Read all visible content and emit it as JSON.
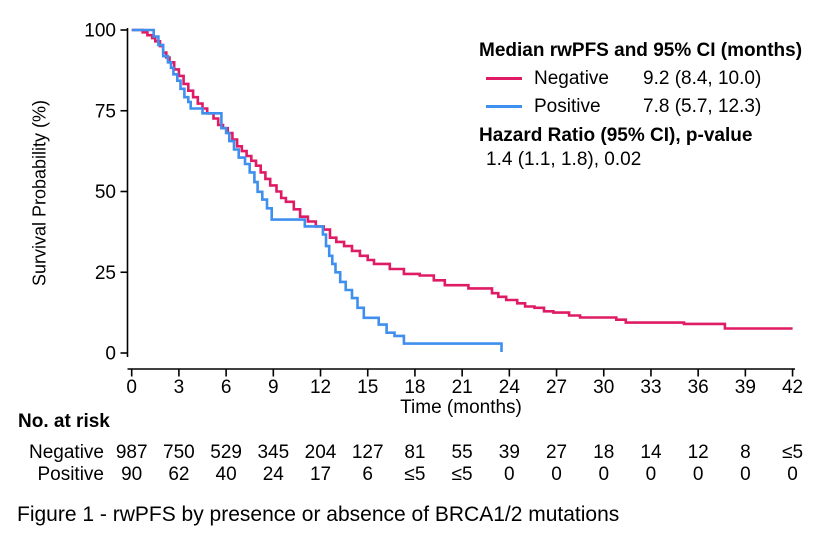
{
  "figure": {
    "caption": "Figure 1 - rwPFS by presence or absence of BRCA1/2 mutations"
  },
  "legend": {
    "title": "Median rwPFS and 95% CI (months)",
    "rows": [
      {
        "label": "Negative",
        "value": "9.2 (8.4, 10.0)",
        "color": "#DE1B64"
      },
      {
        "label": "Positive",
        "value": "7.8 (5.7, 12.3)",
        "color": "#3F8FEF"
      }
    ],
    "hr_title": "Hazard Ratio (95% CI), p-value",
    "hr_value": "1.4 (1.1, 1.8), 0.02"
  },
  "risk_table": {
    "title": "No. at risk",
    "rows": [
      {
        "label": "Negative",
        "values": [
          "987",
          "750",
          "529",
          "345",
          "204",
          "127",
          "81",
          "55",
          "39",
          "27",
          "18",
          "14",
          "12",
          "8",
          "≤5"
        ]
      },
      {
        "label": "Positive",
        "values": [
          "90",
          "62",
          "40",
          "24",
          "17",
          "6",
          "≤5",
          "≤5",
          "0",
          "0",
          "0",
          "0",
          "0",
          "0",
          "0"
        ]
      }
    ]
  },
  "chart_data": {
    "type": "line",
    "subtype": "kaplan-meier-step",
    "title": "",
    "xlabel": "Time (months)",
    "ylabel": "Survival Probability (%)",
    "xlim": [
      0,
      42
    ],
    "ylim": [
      0,
      100
    ],
    "xticks": [
      0,
      3,
      6,
      9,
      12,
      15,
      18,
      21,
      24,
      27,
      30,
      33,
      36,
      39,
      42
    ],
    "yticks": [
      0,
      25,
      50,
      75,
      100
    ],
    "grid": false,
    "legend_position": "top-right",
    "axis_color": "#000000",
    "series": [
      {
        "name": "Negative",
        "color": "#DE1B64",
        "median_months": 9.2,
        "points": [
          [
            0,
            100
          ],
          [
            0.7,
            99.3
          ],
          [
            1.0,
            98.4
          ],
          [
            1.3,
            97.5
          ],
          [
            1.5,
            96.5
          ],
          [
            1.8,
            95.0
          ],
          [
            2.0,
            93.0
          ],
          [
            2.2,
            91.5
          ],
          [
            2.4,
            90.0
          ],
          [
            2.7,
            87.8
          ],
          [
            3.0,
            85.8
          ],
          [
            3.3,
            83.3
          ],
          [
            3.6,
            81.2
          ],
          [
            3.9,
            79.2
          ],
          [
            4.2,
            77.2
          ],
          [
            4.5,
            75.7
          ],
          [
            4.8,
            74.2
          ],
          [
            5.2,
            72.6
          ],
          [
            5.5,
            70.6
          ],
          [
            5.8,
            69.6
          ],
          [
            6.1,
            68.1
          ],
          [
            6.4,
            66.1
          ],
          [
            6.7,
            64.0
          ],
          [
            7.0,
            62.5
          ],
          [
            7.3,
            61.0
          ],
          [
            7.6,
            59.5
          ],
          [
            7.9,
            58.0
          ],
          [
            8.2,
            55.9
          ],
          [
            8.5,
            53.9
          ],
          [
            8.8,
            51.9
          ],
          [
            9.2,
            50.0
          ],
          [
            9.5,
            48.0
          ],
          [
            9.8,
            46.8
          ],
          [
            10.3,
            44.5
          ],
          [
            10.7,
            42.2
          ],
          [
            11.2,
            40.7
          ],
          [
            11.7,
            39.2
          ],
          [
            12.2,
            38.2
          ],
          [
            12.6,
            35.7
          ],
          [
            13.0,
            34.4
          ],
          [
            13.5,
            33.1
          ],
          [
            14.0,
            31.6
          ],
          [
            14.5,
            30.1
          ],
          [
            15.0,
            28.8
          ],
          [
            15.4,
            27.6
          ],
          [
            16.4,
            26.0
          ],
          [
            17.3,
            24.5
          ],
          [
            18.3,
            24.0
          ],
          [
            19.2,
            22.5
          ],
          [
            19.9,
            21.0
          ],
          [
            21.4,
            20.0
          ],
          [
            22.9,
            18.5
          ],
          [
            23.3,
            17.4
          ],
          [
            23.8,
            16.4
          ],
          [
            24.5,
            15.4
          ],
          [
            25.0,
            14.4
          ],
          [
            25.6,
            14.0
          ],
          [
            26.2,
            12.9
          ],
          [
            26.8,
            12.5
          ],
          [
            27.8,
            11.6
          ],
          [
            28.5,
            11.0
          ],
          [
            30.8,
            10.3
          ],
          [
            31.4,
            9.4
          ],
          [
            35.1,
            9.0
          ],
          [
            37.7,
            7.6
          ],
          [
            42,
            7.6
          ]
        ]
      },
      {
        "name": "Positive",
        "color": "#3F8FEF",
        "median_months": 7.8,
        "points": [
          [
            0,
            100
          ],
          [
            1.4,
            98.0
          ],
          [
            1.7,
            95.4
          ],
          [
            2.0,
            91.9
          ],
          [
            2.3,
            90.0
          ],
          [
            2.5,
            88.3
          ],
          [
            2.65,
            86.3
          ],
          [
            2.9,
            84.3
          ],
          [
            3.1,
            81.8
          ],
          [
            3.35,
            79.2
          ],
          [
            3.6,
            77.7
          ],
          [
            3.75,
            75.7
          ],
          [
            4.5,
            74.2
          ],
          [
            5.7,
            69.6
          ],
          [
            6.0,
            68.1
          ],
          [
            6.2,
            65.6
          ],
          [
            6.5,
            63.0
          ],
          [
            6.8,
            60.5
          ],
          [
            7.2,
            58.5
          ],
          [
            7.5,
            55.9
          ],
          [
            7.8,
            52.9
          ],
          [
            8.0,
            49.9
          ],
          [
            8.3,
            47.5
          ],
          [
            8.6,
            44.8
          ],
          [
            8.9,
            41.3
          ],
          [
            11.0,
            39.2
          ],
          [
            12.15,
            36.7
          ],
          [
            12.35,
            33.1
          ],
          [
            12.55,
            30.1
          ],
          [
            12.75,
            27.6
          ],
          [
            12.95,
            25.0
          ],
          [
            13.25,
            22.0
          ],
          [
            13.6,
            19.5
          ],
          [
            14.0,
            17.0
          ],
          [
            14.35,
            14.0
          ],
          [
            14.75,
            10.9
          ],
          [
            15.7,
            8.8
          ],
          [
            16.2,
            6.3
          ],
          [
            16.7,
            5.3
          ],
          [
            17.3,
            2.9
          ],
          [
            23.5,
            0.3
          ]
        ]
      }
    ]
  }
}
